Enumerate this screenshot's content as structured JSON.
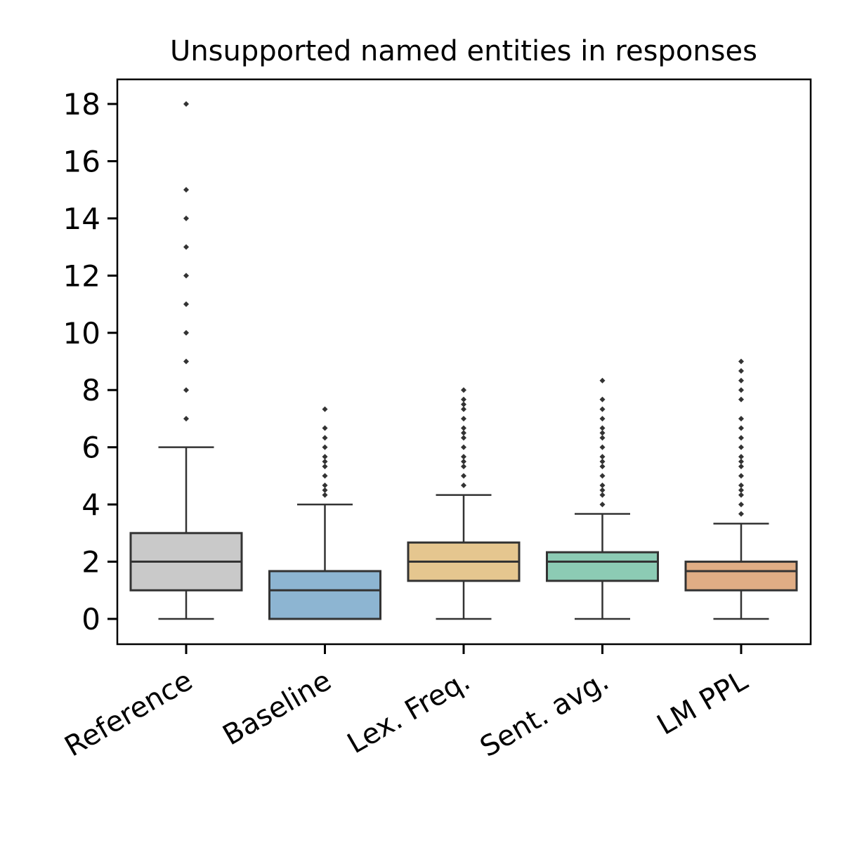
{
  "chart_data": {
    "type": "box",
    "title": "Unsupported named entities in responses",
    "xlabel": "",
    "ylabel": "",
    "ylim": [
      -0.9,
      18.9
    ],
    "yticks": [
      0,
      2,
      4,
      6,
      8,
      10,
      12,
      14,
      16,
      18
    ],
    "grid": false,
    "categories": [
      "Reference",
      "Baseline",
      "Lex. Freq.",
      "Sent. avg.",
      "LM PPL"
    ],
    "boxes": [
      {
        "name": "Reference",
        "color": "#c9c9c9",
        "whisker_low": 0,
        "q1": 1,
        "median": 2,
        "q3": 3,
        "whisker_high": 6,
        "outliers": [
          7,
          8,
          9,
          10,
          11,
          12,
          13,
          14,
          15,
          18
        ]
      },
      {
        "name": "Baseline",
        "color": "#8db5d2",
        "whisker_low": 0,
        "q1": 0,
        "median": 1,
        "q3": 1.67,
        "whisker_high": 4,
        "outliers": [
          4.33,
          4.5,
          4.67,
          5,
          5.33,
          5.5,
          5.67,
          6,
          6.33,
          6.67,
          7.33
        ]
      },
      {
        "name": "Lex. Freq.",
        "color": "#e5c68f",
        "whisker_low": 0,
        "q1": 1.33,
        "median": 2,
        "q3": 2.67,
        "whisker_high": 4.33,
        "outliers": [
          4.67,
          5,
          5.33,
          5.5,
          5.67,
          6,
          6.33,
          6.5,
          6.67,
          7,
          7.33,
          7.5,
          7.67,
          8
        ]
      },
      {
        "name": "Sent. avg.",
        "color": "#8ccbb4",
        "whisker_low": 0,
        "q1": 1.33,
        "median": 2,
        "q3": 2.33,
        "whisker_high": 3.67,
        "outliers": [
          4,
          4.33,
          4.5,
          4.67,
          5,
          5.33,
          5.5,
          5.67,
          6,
          6.33,
          6.5,
          6.67,
          7,
          7.33,
          7.67,
          8.33
        ]
      },
      {
        "name": "LM PPL",
        "color": "#e0ad85",
        "whisker_low": 0,
        "q1": 1,
        "median": 1.67,
        "q3": 2,
        "whisker_high": 3.33,
        "outliers": [
          3.67,
          4,
          4.33,
          4.5,
          4.67,
          5,
          5.33,
          5.5,
          5.67,
          6,
          6.33,
          6.67,
          7,
          7.67,
          8,
          8.33,
          8.67,
          9
        ]
      }
    ]
  }
}
